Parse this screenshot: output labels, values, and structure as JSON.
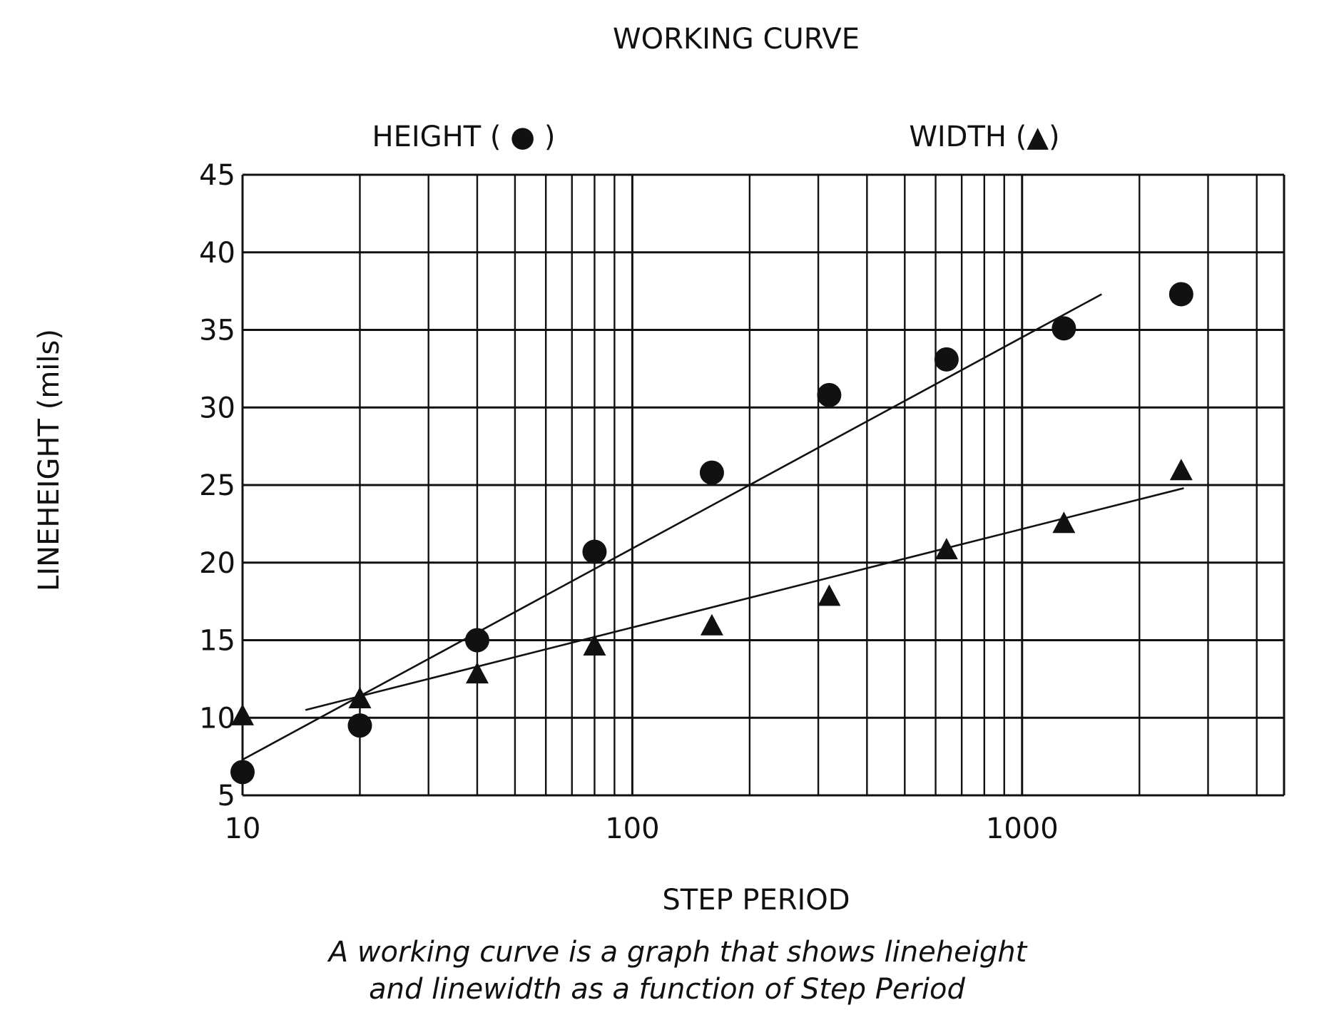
{
  "chart_data": {
    "type": "scatter",
    "title": "WORKING CURVE",
    "xlabel": "STEP PERIOD",
    "ylabel": "LINEHEIGHT (mils)",
    "caption_lines": [
      "A working curve is a graph that shows lineheight",
      "and linewidth as a function of Step Period"
    ],
    "x_scale": "log",
    "xlim": [
      10,
      4700
    ],
    "ylim": [
      5,
      45
    ],
    "x_ticks": [
      10,
      100,
      1000
    ],
    "x_tick_labels": [
      "10",
      "100",
      "1000"
    ],
    "y_ticks": [
      5,
      10,
      15,
      20,
      25,
      30,
      35,
      40,
      45
    ],
    "y_tick_labels": [
      "5",
      "10",
      "15",
      "20",
      "25",
      "30",
      "35",
      "40",
      "45"
    ],
    "grid": true,
    "series": [
      {
        "name": "HEIGHT ( ● )",
        "marker": "circle",
        "x": [
          10,
          20,
          40,
          80,
          160,
          320,
          640,
          1280,
          2560
        ],
        "y": [
          6.5,
          9.5,
          15,
          20.7,
          25.8,
          30.8,
          33.1,
          35.1,
          37.3
        ],
        "fit_line": {
          "x": [
            10,
            1600
          ],
          "y": [
            7.3,
            37.3
          ]
        }
      },
      {
        "name": "WIDTH (▲)",
        "marker": "triangle",
        "x": [
          10,
          20,
          40,
          80,
          160,
          320,
          640,
          1280,
          2560
        ],
        "y": [
          10.2,
          11.3,
          12.9,
          14.7,
          16.0,
          17.9,
          20.9,
          22.6,
          26.0
        ],
        "fit_line": {
          "x": [
            14.5,
            2600
          ],
          "y": [
            10.5,
            24.8
          ]
        }
      }
    ]
  }
}
